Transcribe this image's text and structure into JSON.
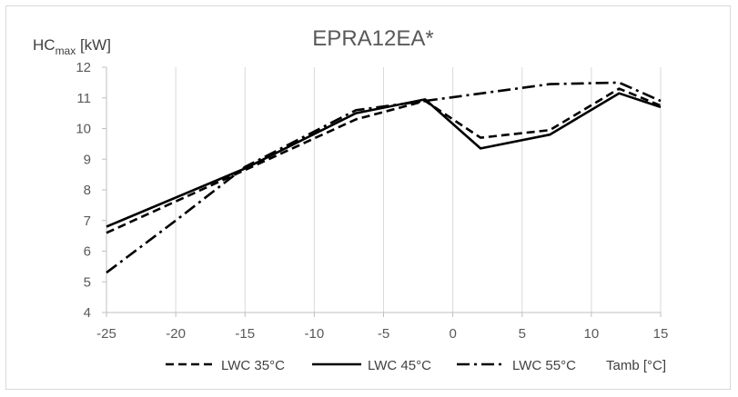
{
  "chart_data": {
    "type": "line",
    "title": "EPRA12EA*",
    "ylabel": {
      "main": "HC",
      "sub": "max",
      "unit": " [kW]"
    },
    "xlabel": "Tamb [°C]",
    "xlim": [
      -25,
      15
    ],
    "ylim": [
      4,
      12
    ],
    "x_ticks": [
      -25,
      -20,
      -15,
      -10,
      -5,
      0,
      5,
      10,
      15
    ],
    "y_ticks": [
      4,
      5,
      6,
      7,
      8,
      9,
      10,
      11,
      12
    ],
    "grid": "vertical",
    "legend_position": "bottom",
    "series": [
      {
        "name": "LWC 35°C",
        "style": "dashed",
        "color": "#000000",
        "points": [
          [
            -25,
            6.6
          ],
          [
            -15,
            8.65
          ],
          [
            -7,
            10.3
          ],
          [
            -2,
            10.9
          ],
          [
            2,
            9.7
          ],
          [
            7,
            9.95
          ],
          [
            12,
            11.3
          ],
          [
            15,
            10.75
          ]
        ]
      },
      {
        "name": "LWC 45°C",
        "style": "solid",
        "color": "#000000",
        "points": [
          [
            -25,
            6.8
          ],
          [
            -15,
            8.7
          ],
          [
            -7,
            10.5
          ],
          [
            -2,
            10.95
          ],
          [
            2,
            9.35
          ],
          [
            7,
            9.8
          ],
          [
            12,
            11.15
          ],
          [
            15,
            10.7
          ]
        ]
      },
      {
        "name": "LWC 55°C",
        "style": "dashdot",
        "color": "#000000",
        "points": [
          [
            -25,
            5.3
          ],
          [
            -20,
            7.0
          ],
          [
            -15,
            8.75
          ],
          [
            -7,
            10.6
          ],
          [
            -2,
            10.9
          ],
          [
            7,
            11.45
          ],
          [
            12,
            11.5
          ],
          [
            15,
            10.9
          ]
        ]
      }
    ]
  }
}
